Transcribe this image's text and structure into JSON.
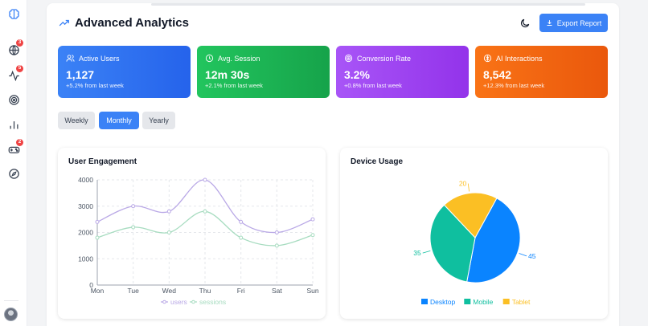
{
  "sidebar": {
    "items": [
      {
        "name": "brain",
        "badge": ""
      },
      {
        "name": "globe",
        "badge": "3"
      },
      {
        "name": "activity",
        "badge": "5"
      },
      {
        "name": "target",
        "badge": ""
      },
      {
        "name": "bar-chart",
        "badge": ""
      },
      {
        "name": "gamepad",
        "badge": "2"
      },
      {
        "name": "compass",
        "badge": ""
      }
    ]
  },
  "header": {
    "title": "Advanced Analytics",
    "export_label": "Export Report"
  },
  "stats": [
    {
      "label": "Active Users",
      "value": "1,127",
      "delta": "+5.2% from last week",
      "icon": "users-icon"
    },
    {
      "label": "Avg. Session",
      "value": "12m 30s",
      "delta": "+2.1% from last week",
      "icon": "clock-icon"
    },
    {
      "label": "Conversion Rate",
      "value": "3.2%",
      "delta": "+0.8% from last week",
      "icon": "target-icon"
    },
    {
      "label": "AI Interactions",
      "value": "8,542",
      "delta": "+12.3% from last week",
      "icon": "brain-icon"
    }
  ],
  "periods": {
    "weekly": "Weekly",
    "monthly": "Monthly",
    "yearly": "Yearly",
    "active": "Monthly"
  },
  "engagement": {
    "title": "User Engagement"
  },
  "devices": {
    "title": "Device Usage"
  },
  "colors": {
    "users_line": "#b9a8e6",
    "sessions_line": "#a7dcc0",
    "desktop": "#0a84ff",
    "mobile": "#0fbf9f",
    "tablet": "#fbbf24",
    "accent": "#3b82f6"
  },
  "chart_data": [
    {
      "type": "line",
      "title": "User Engagement",
      "categories": [
        "Mon",
        "Tue",
        "Wed",
        "Thu",
        "Fri",
        "Sat",
        "Sun"
      ],
      "series": [
        {
          "name": "users",
          "values": [
            2400,
            3000,
            2800,
            4000,
            2400,
            2000,
            2500
          ]
        },
        {
          "name": "sessions",
          "values": [
            1800,
            2200,
            2000,
            2800,
            1800,
            1500,
            1900
          ]
        }
      ],
      "ylim": [
        0,
        4000
      ],
      "yticks": [
        0,
        1000,
        2000,
        3000,
        4000
      ],
      "grid": true,
      "legend": "bottom"
    },
    {
      "type": "pie",
      "title": "Device Usage",
      "categories": [
        "Desktop",
        "Mobile",
        "Tablet"
      ],
      "values": [
        45,
        35,
        20
      ],
      "legend": "bottom"
    }
  ]
}
